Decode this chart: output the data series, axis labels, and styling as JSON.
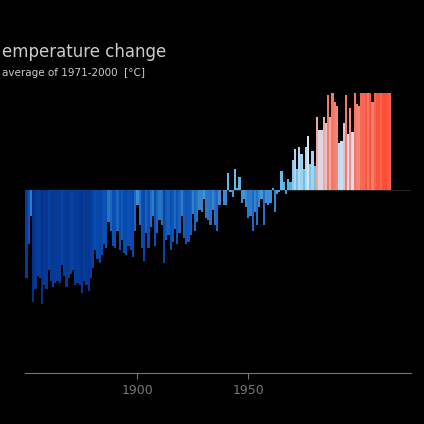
{
  "title": "emperature change",
  "subtitle": "average of 1971-2000  [°C]",
  "start_year": 1850,
  "end_year": 2023,
  "background_color": "#000000",
  "text_color": "#cccccc",
  "axis_color": "#777777",
  "xlabel_years": [
    1900,
    1950
  ],
  "ylim": [
    -0.85,
    0.45
  ],
  "vmin": -0.75,
  "vmax": 0.65,
  "temp_anomalies": [
    -0.41,
    -0.25,
    -0.12,
    -0.52,
    -0.46,
    -0.4,
    -0.41,
    -0.53,
    -0.44,
    -0.46,
    -0.37,
    -0.42,
    -0.45,
    -0.43,
    -0.42,
    -0.43,
    -0.35,
    -0.4,
    -0.45,
    -0.41,
    -0.39,
    -0.37,
    -0.44,
    -0.43,
    -0.44,
    -0.48,
    -0.42,
    -0.44,
    -0.47,
    -0.41,
    -0.36,
    -0.28,
    -0.32,
    -0.34,
    -0.3,
    -0.25,
    -0.27,
    -0.15,
    -0.19,
    -0.26,
    -0.27,
    -0.19,
    -0.28,
    -0.23,
    -0.29,
    -0.3,
    -0.26,
    -0.28,
    -0.31,
    -0.19,
    -0.07,
    -0.16,
    -0.27,
    -0.33,
    -0.2,
    -0.27,
    -0.17,
    -0.12,
    -0.26,
    -0.2,
    -0.14,
    -0.16,
    -0.34,
    -0.23,
    -0.21,
    -0.28,
    -0.24,
    -0.18,
    -0.25,
    -0.2,
    -0.12,
    -0.22,
    -0.25,
    -0.24,
    -0.21,
    -0.11,
    -0.19,
    -0.15,
    -0.09,
    -0.1,
    -0.04,
    -0.13,
    -0.14,
    -0.16,
    -0.09,
    -0.16,
    -0.19,
    -0.07,
    0.0,
    -0.07,
    -0.07,
    0.08,
    -0.01,
    -0.03,
    0.1,
    0.01,
    0.06,
    -0.06,
    -0.04,
    -0.08,
    -0.13,
    -0.12,
    -0.19,
    -0.1,
    -0.16,
    -0.08,
    -0.04,
    -0.16,
    -0.06,
    -0.07,
    -0.06,
    0.01,
    -0.1,
    -0.02,
    -0.01,
    0.09,
    0.04,
    -0.02,
    0.05,
    0.04,
    0.14,
    0.19,
    0.1,
    0.2,
    0.17,
    0.1,
    0.2,
    0.25,
    0.12,
    0.18,
    0.11,
    0.34,
    0.28,
    0.28,
    0.34,
    0.31,
    0.44,
    0.34,
    0.45,
    0.41,
    0.39,
    0.22,
    0.23,
    0.31,
    0.44,
    0.26,
    0.38,
    0.27,
    0.45,
    0.4,
    0.39,
    0.52,
    0.53,
    0.6,
    0.45,
    0.61,
    0.41,
    0.55,
    0.63,
    0.62,
    0.54,
    0.68,
    0.64,
    0.61,
    0.54
  ]
}
